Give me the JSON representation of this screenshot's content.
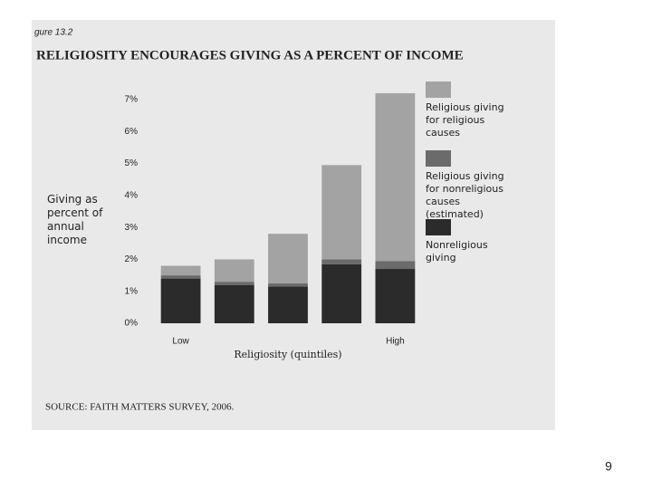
{
  "figure_label": "gure 13.2",
  "page_number": "9",
  "source": "SOURCE: FAITH MATTERS SURVEY, 2006.",
  "chart_data": {
    "type": "stacked-bar",
    "title": "RELIGIOSITY ENCOURAGES GIVING AS A PERCENT OF INCOME",
    "y_label": "Giving as percent of annual income",
    "x_label": "Religiosity (quintiles)",
    "categories": [
      "Low",
      null,
      null,
      null,
      "High"
    ],
    "series": [
      {
        "name": "Nonreligious giving",
        "color": "#2b2b2b",
        "values": [
          1.4,
          1.2,
          1.15,
          1.85,
          1.7
        ]
      },
      {
        "name": "Religious giving for nonreligious causes (estimated)",
        "color": "#6b6b6b",
        "values": [
          0.1,
          0.1,
          0.1,
          0.15,
          0.25
        ]
      },
      {
        "name": "Religious giving for religious causes",
        "color": "#a3a3a3",
        "values": [
          0.3,
          0.7,
          1.55,
          2.95,
          5.25
        ]
      }
    ],
    "ylim": [
      0,
      7
    ],
    "yticks": [
      {
        "value": 0,
        "label": "0%"
      },
      {
        "value": 1,
        "label": "1%"
      },
      {
        "value": 2,
        "label": "2%"
      },
      {
        "value": 3,
        "label": "3%"
      },
      {
        "value": 4,
        "label": "4%"
      },
      {
        "value": 5,
        "label": "5%"
      },
      {
        "value": 6,
        "label": "6%"
      },
      {
        "value": 7,
        "label": "7%"
      }
    ],
    "grid": false
  }
}
